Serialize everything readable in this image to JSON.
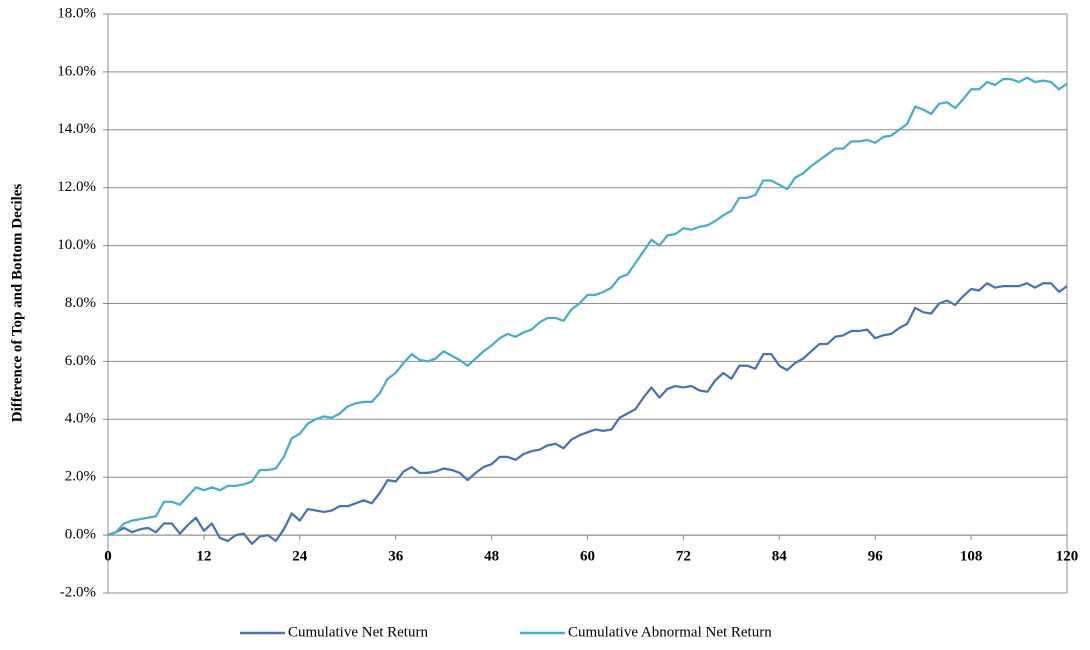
{
  "chart_data": {
    "type": "line",
    "y_label": "Difference of Top and Bottom Deciles",
    "x": [
      0,
      1,
      2,
      3,
      4,
      5,
      6,
      7,
      8,
      9,
      10,
      11,
      12,
      13,
      14,
      15,
      16,
      17,
      18,
      19,
      20,
      21,
      22,
      23,
      24,
      25,
      26,
      27,
      28,
      29,
      30,
      31,
      32,
      33,
      34,
      35,
      36,
      37,
      38,
      39,
      40,
      41,
      42,
      43,
      44,
      45,
      46,
      47,
      48,
      49,
      50,
      51,
      52,
      53,
      54,
      55,
      56,
      57,
      58,
      59,
      60,
      61,
      62,
      63,
      64,
      65,
      66,
      67,
      68,
      69,
      70,
      71,
      72,
      73,
      74,
      75,
      76,
      77,
      78,
      79,
      80,
      81,
      82,
      83,
      84,
      85,
      86,
      87,
      88,
      89,
      90,
      91,
      92,
      93,
      94,
      95,
      96,
      97,
      98,
      99,
      100,
      101,
      102,
      103,
      104,
      105,
      106,
      107,
      108,
      109,
      110,
      111,
      112,
      113,
      114,
      115,
      116,
      117,
      118,
      119,
      120
    ],
    "series": [
      {
        "name": "Cumulative Net Return",
        "color": "#4a72b0",
        "values": [
          0,
          0.1,
          0.25,
          0.1,
          0.2,
          0.25,
          0.1,
          0.4,
          0.4,
          0.05,
          0.35,
          0.6,
          0.15,
          0.4,
          -0.1,
          -0.2,
          0,
          0.05,
          -0.3,
          -0.05,
          0,
          -0.2,
          0.2,
          0.75,
          0.5,
          0.9,
          0.85,
          0.8,
          0.85,
          1.0,
          1.0,
          1.1,
          1.2,
          1.1,
          1.45,
          1.9,
          1.85,
          2.2,
          2.35,
          2.15,
          2.15,
          2.2,
          2.3,
          2.25,
          2.15,
          1.9,
          2.15,
          2.35,
          2.45,
          2.7,
          2.7,
          2.6,
          2.8,
          2.9,
          2.95,
          3.1,
          3.15,
          3.0,
          3.3,
          3.45,
          3.55,
          3.65,
          3.6,
          3.65,
          4.05,
          4.2,
          4.35,
          4.75,
          5.1,
          4.75,
          5.05,
          5.15,
          5.1,
          5.15,
          5.0,
          4.95,
          5.35,
          5.6,
          5.4,
          5.85,
          5.85,
          5.75,
          6.25,
          6.25,
          5.85,
          5.7,
          5.95,
          6.1,
          6.35,
          6.6,
          6.6,
          6.85,
          6.9,
          7.05,
          7.05,
          7.1,
          6.8,
          6.9,
          6.95,
          7.15,
          7.3,
          7.85,
          7.7,
          7.65,
          8.0,
          8.1,
          7.95,
          8.25,
          8.5,
          8.45,
          8.7,
          8.55,
          8.6,
          8.6,
          8.6,
          8.7,
          8.55,
          8.7,
          8.7,
          8.4,
          8.6
        ]
      },
      {
        "name": "Cumulative Abnormal Net Return",
        "color": "#4bacc6",
        "values": [
          0,
          0.1,
          0.4,
          0.5,
          0.55,
          0.6,
          0.65,
          1.15,
          1.15,
          1.05,
          1.35,
          1.65,
          1.55,
          1.65,
          1.55,
          1.7,
          1.7,
          1.75,
          1.85,
          2.25,
          2.25,
          2.3,
          2.7,
          3.35,
          3.5,
          3.85,
          4.0,
          4.1,
          4.05,
          4.2,
          4.45,
          4.55,
          4.6,
          4.6,
          4.9,
          5.4,
          5.6,
          5.95,
          6.25,
          6.05,
          6.0,
          6.1,
          6.35,
          6.2,
          6.05,
          5.85,
          6.1,
          6.35,
          6.55,
          6.8,
          6.95,
          6.85,
          7.0,
          7.1,
          7.35,
          7.5,
          7.5,
          7.4,
          7.8,
          8.0,
          8.3,
          8.3,
          8.4,
          8.55,
          8.9,
          9.0,
          9.4,
          9.8,
          10.2,
          10.0,
          10.35,
          10.4,
          10.6,
          10.55,
          10.65,
          10.7,
          10.85,
          11.05,
          11.2,
          11.65,
          11.65,
          11.75,
          12.25,
          12.25,
          12.1,
          11.95,
          12.35,
          12.5,
          12.75,
          12.95,
          13.15,
          13.35,
          13.35,
          13.6,
          13.6,
          13.65,
          13.55,
          13.75,
          13.8,
          14.0,
          14.2,
          14.8,
          14.7,
          14.55,
          14.9,
          14.95,
          14.75,
          15.05,
          15.4,
          15.4,
          15.65,
          15.55,
          15.75,
          15.75,
          15.65,
          15.8,
          15.65,
          15.7,
          15.65,
          15.4,
          15.6
        ]
      }
    ],
    "xlim": [
      0,
      120
    ],
    "xticks": [
      0,
      12,
      24,
      36,
      48,
      60,
      72,
      84,
      96,
      108,
      120
    ],
    "ylim": [
      -2,
      18
    ],
    "yticks": [
      {
        "value": -2,
        "label": "-2.0%"
      },
      {
        "value": 0,
        "label": "0.0%"
      },
      {
        "value": 2,
        "label": "2.0%"
      },
      {
        "value": 4,
        "label": "4.0%"
      },
      {
        "value": 6,
        "label": "6.0%"
      },
      {
        "value": 8,
        "label": "8.0%"
      },
      {
        "value": 10,
        "label": "10.0%"
      },
      {
        "value": 12,
        "label": "12.0%"
      },
      {
        "value": 14,
        "label": "14.0%"
      },
      {
        "value": 16,
        "label": "16.0%"
      },
      {
        "value": 18,
        "label": "18.0%"
      }
    ],
    "grid": true,
    "legend": "bottom"
  }
}
